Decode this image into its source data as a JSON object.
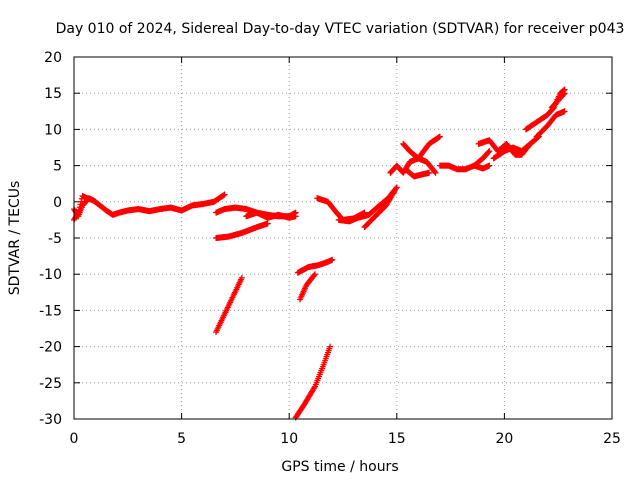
{
  "chart_data": {
    "type": "scatter",
    "title": "Day 010 of 2024, Sidereal Day-to-day VTEC variation (SDTVAR) for receiver p043",
    "xlabel": "GPS time / hours",
    "ylabel": "SDTVAR / TECUs",
    "xlim": [
      0,
      25
    ],
    "ylim": [
      -30,
      20
    ],
    "xticks": [
      0,
      5,
      10,
      15,
      20,
      25
    ],
    "yticks": [
      -30,
      -25,
      -20,
      -15,
      -10,
      -5,
      0,
      5,
      10,
      15,
      20
    ],
    "x_tick_labels": [
      "0",
      "5",
      "10",
      "15",
      "20",
      "25"
    ],
    "y_tick_labels": [
      "-30",
      "-25",
      "-20",
      "-15",
      "-10",
      "-5",
      "0",
      "5",
      "10",
      "15",
      "20"
    ],
    "grid": true,
    "marker": "plus",
    "color": "#ff0000",
    "series": [
      {
        "x": [
          0.0,
          0.2,
          0.4,
          0.6,
          0.9,
          1.2,
          1.5,
          1.8,
          2.1,
          2.5,
          3.0,
          3.5,
          4.0,
          4.5,
          5.0,
          5.5,
          6.0,
          6.5,
          7.0
        ],
        "y": [
          -2.5,
          -1.5,
          0.8,
          0.5,
          0.2,
          -0.5,
          -1.2,
          -1.8,
          -1.5,
          -1.2,
          -1.0,
          -1.3,
          -1.0,
          -0.8,
          -1.2,
          -0.5,
          -0.3,
          0.0,
          1.0
        ]
      },
      {
        "x": [
          0.0,
          0.2,
          0.4,
          0.7,
          1.0
        ],
        "y": [
          -1.0,
          -2.0,
          -0.5,
          0.5,
          0.0
        ]
      },
      {
        "x": [
          6.6,
          7.0,
          7.5,
          8.0,
          8.5,
          9.0,
          9.5,
          10.0,
          10.3
        ],
        "y": [
          -1.5,
          -1.0,
          -0.8,
          -1.0,
          -1.5,
          -1.8,
          -2.0,
          -2.0,
          -1.5
        ]
      },
      {
        "x": [
          6.6,
          7.2,
          7.8,
          8.5,
          9.0
        ],
        "y": [
          -5.0,
          -4.8,
          -4.3,
          -3.5,
          -3.0
        ]
      },
      {
        "x": [
          8.0,
          8.5,
          9.0,
          9.5,
          10.0,
          10.3
        ],
        "y": [
          -2.0,
          -1.5,
          -2.2,
          -1.8,
          -2.2,
          -2.0
        ]
      },
      {
        "x": [
          6.6,
          7.0,
          7.4,
          7.8
        ],
        "y": [
          -18.0,
          -15.5,
          -13.0,
          -10.5
        ]
      },
      {
        "x": [
          10.3,
          10.7,
          11.2,
          11.6,
          11.9
        ],
        "y": [
          -29.8,
          -28.0,
          -25.5,
          -22.5,
          -20.0
        ]
      },
      {
        "x": [
          10.4,
          10.9,
          11.3,
          11.8,
          12.0
        ],
        "y": [
          -9.8,
          -9.0,
          -8.8,
          -8.3,
          -8.0
        ]
      },
      {
        "x": [
          10.5,
          10.8,
          11.2
        ],
        "y": [
          -13.5,
          -11.5,
          -10.0
        ]
      },
      {
        "x": [
          11.3,
          11.8,
          12.2,
          12.5,
          13.0,
          13.5
        ],
        "y": [
          0.5,
          0.0,
          -1.5,
          -2.5,
          -2.3,
          -1.5
        ]
      },
      {
        "x": [
          12.3,
          12.8,
          13.2,
          13.7,
          14.2,
          14.6,
          15.0
        ],
        "y": [
          -2.5,
          -2.7,
          -2.2,
          -1.8,
          -0.5,
          0.5,
          2.0
        ]
      },
      {
        "x": [
          13.5,
          14.0,
          14.5,
          14.9
        ],
        "y": [
          -3.5,
          -2.0,
          -0.5,
          1.5
        ]
      },
      {
        "x": [
          14.7,
          15.0,
          15.3,
          15.6,
          16.0,
          16.5,
          17.0
        ],
        "y": [
          4.0,
          5.0,
          4.0,
          5.5,
          6.0,
          8.0,
          9.0
        ]
      },
      {
        "x": [
          15.3,
          15.6,
          16.0,
          16.4,
          16.8
        ],
        "y": [
          8.0,
          7.0,
          6.0,
          5.5,
          4.0
        ]
      },
      {
        "x": [
          15.4,
          15.8,
          16.2,
          16.5
        ],
        "y": [
          4.5,
          3.5,
          3.8,
          4.0
        ]
      },
      {
        "x": [
          17.0,
          17.4,
          17.8,
          18.2,
          18.6,
          19.0,
          19.3
        ],
        "y": [
          5.0,
          5.0,
          4.5,
          4.5,
          5.0,
          6.0,
          7.0
        ]
      },
      {
        "x": [
          18.6,
          19.0,
          19.3
        ],
        "y": [
          5.0,
          4.6,
          5.0
        ]
      },
      {
        "x": [
          18.8,
          19.3,
          19.7,
          20.1,
          20.5,
          20.8,
          21.2
        ],
        "y": [
          8.0,
          8.5,
          7.0,
          8.0,
          6.5,
          6.5,
          8.0
        ]
      },
      {
        "x": [
          19.5,
          20.0,
          20.4,
          20.8,
          21.2,
          21.6
        ],
        "y": [
          6.0,
          7.0,
          7.5,
          7.0,
          8.0,
          9.0
        ]
      },
      {
        "x": [
          21.0,
          21.5,
          22.0,
          22.3,
          22.6,
          22.8
        ],
        "y": [
          10.0,
          11.0,
          12.0,
          13.0,
          15.0,
          15.5
        ]
      },
      {
        "x": [
          21.5,
          22.0,
          22.4,
          22.8
        ],
        "y": [
          9.0,
          10.5,
          12.0,
          12.5
        ]
      },
      {
        "x": [
          22.2,
          22.5,
          22.8
        ],
        "y": [
          13.0,
          14.0,
          15.0
        ]
      }
    ]
  }
}
